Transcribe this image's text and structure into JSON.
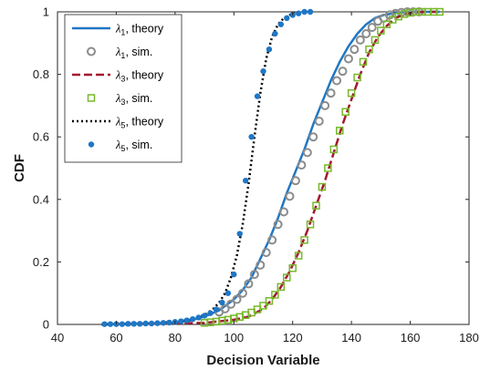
{
  "chart_data": {
    "type": "line",
    "title": "",
    "xlabel": "Decision Variable",
    "ylabel": "CDF",
    "xlim": [
      40,
      180
    ],
    "ylim": [
      0,
      1
    ],
    "xticks": [
      40,
      60,
      80,
      100,
      120,
      140,
      160,
      180
    ],
    "yticks": [
      0,
      0.2,
      0.4,
      0.6,
      0.8,
      1
    ],
    "xtick_labels": [
      "40",
      "60",
      "80",
      "100",
      "120",
      "140",
      "160",
      "180"
    ],
    "ytick_labels": [
      "0",
      "0.2",
      "0.4",
      "0.6",
      "0.8",
      "1"
    ],
    "grid": false,
    "legend_position": "top-left",
    "series": [
      {
        "name": "λ1, theory",
        "sym": "λ",
        "sub": "1",
        "suffix": ", theory",
        "style": "solid",
        "marker": "none",
        "color": "#1f77c4",
        "x": [
          55,
          80,
          85,
          90,
          95,
          100,
          103,
          106,
          109,
          112,
          115,
          118,
          121,
          124,
          127,
          130,
          133,
          136,
          139,
          142,
          145,
          148,
          151,
          154,
          157,
          160,
          170
        ],
        "y": [
          0.0,
          0.005,
          0.012,
          0.025,
          0.045,
          0.08,
          0.11,
          0.15,
          0.21,
          0.27,
          0.34,
          0.42,
          0.49,
          0.56,
          0.64,
          0.71,
          0.78,
          0.84,
          0.89,
          0.93,
          0.96,
          0.98,
          0.99,
          0.995,
          0.998,
          1.0,
          1.0
        ]
      },
      {
        "name": "λ1, sim.",
        "sym": "λ",
        "sub": "1",
        "suffix": ", sim.",
        "style": "none",
        "marker": "circle-open",
        "color": "#8c8c8c",
        "x": [
          95,
          97,
          99,
          101,
          103,
          105,
          107,
          109,
          111,
          113,
          115,
          117,
          119,
          121,
          123,
          125,
          127,
          129,
          131,
          133,
          135,
          137,
          139,
          141,
          143,
          145,
          147,
          149,
          151,
          153,
          155,
          157,
          159,
          161,
          163
        ],
        "y": [
          0.04,
          0.05,
          0.065,
          0.08,
          0.1,
          0.13,
          0.16,
          0.19,
          0.23,
          0.27,
          0.32,
          0.36,
          0.41,
          0.46,
          0.51,
          0.55,
          0.6,
          0.65,
          0.7,
          0.74,
          0.78,
          0.81,
          0.85,
          0.88,
          0.91,
          0.93,
          0.95,
          0.97,
          0.98,
          0.99,
          0.995,
          0.998,
          1.0,
          1.0,
          1.0
        ]
      },
      {
        "name": "λ3, theory",
        "sym": "λ",
        "sub": "3",
        "suffix": ", theory",
        "style": "dashed",
        "marker": "none",
        "color": "#a3192e",
        "x": [
          55,
          90,
          100,
          105,
          110,
          113,
          116,
          119,
          122,
          125,
          128,
          131,
          134,
          137,
          140,
          143,
          146,
          149,
          152,
          155,
          158,
          161,
          165,
          170
        ],
        "y": [
          0.0,
          0.005,
          0.015,
          0.025,
          0.05,
          0.08,
          0.12,
          0.17,
          0.23,
          0.3,
          0.38,
          0.46,
          0.55,
          0.64,
          0.72,
          0.8,
          0.87,
          0.92,
          0.955,
          0.98,
          0.992,
          0.998,
          1.0,
          1.0
        ]
      },
      {
        "name": "λ3, sim.",
        "sym": "λ",
        "sub": "3",
        "suffix": ", sim.",
        "style": "none",
        "marker": "square-open",
        "color": "#78b82a",
        "x": [
          90,
          92,
          94,
          96,
          98,
          100,
          102,
          104,
          106,
          108,
          110,
          112,
          114,
          116,
          118,
          120,
          122,
          124,
          126,
          128,
          130,
          132,
          134,
          136,
          138,
          140,
          142,
          144,
          146,
          148,
          150,
          152,
          154,
          156,
          158,
          160,
          162,
          164,
          166,
          168,
          170
        ],
        "y": [
          0.005,
          0.007,
          0.009,
          0.012,
          0.015,
          0.019,
          0.024,
          0.03,
          0.038,
          0.048,
          0.06,
          0.075,
          0.095,
          0.12,
          0.15,
          0.18,
          0.22,
          0.27,
          0.32,
          0.38,
          0.44,
          0.5,
          0.56,
          0.62,
          0.68,
          0.74,
          0.79,
          0.84,
          0.88,
          0.91,
          0.94,
          0.96,
          0.975,
          0.985,
          0.993,
          0.997,
          1.0,
          1.0,
          1.0,
          1.0,
          1.0
        ]
      },
      {
        "name": "λ5, theory",
        "sym": "λ",
        "sub": "5",
        "suffix": ", theory",
        "style": "dotted",
        "marker": "none",
        "color": "#000000",
        "x": [
          55,
          70,
          80,
          85,
          90,
          93,
          95,
          97,
          99,
          101,
          103,
          105,
          107,
          109,
          111,
          113,
          115,
          117,
          119,
          121,
          123,
          125
        ],
        "y": [
          0.0,
          0.002,
          0.008,
          0.015,
          0.03,
          0.05,
          0.07,
          0.1,
          0.15,
          0.22,
          0.32,
          0.45,
          0.6,
          0.74,
          0.85,
          0.92,
          0.96,
          0.98,
          0.99,
          0.997,
          0.999,
          1.0
        ]
      },
      {
        "name": "λ5, sim.",
        "sym": "λ",
        "sub": "5",
        "suffix": ", sim.",
        "style": "none",
        "marker": "circle-filled",
        "color": "#1f77c4",
        "x": [
          56,
          58,
          60,
          62,
          64,
          66,
          68,
          70,
          72,
          74,
          76,
          78,
          80,
          82,
          84,
          86,
          88,
          90,
          92,
          94,
          96,
          98,
          100,
          102,
          104,
          106,
          108,
          110,
          112,
          114,
          116,
          118,
          120,
          122,
          124,
          126
        ],
        "y": [
          0.001,
          0.001,
          0.001,
          0.001,
          0.002,
          0.002,
          0.002,
          0.003,
          0.003,
          0.004,
          0.005,
          0.006,
          0.008,
          0.01,
          0.013,
          0.017,
          0.022,
          0.028,
          0.036,
          0.048,
          0.07,
          0.1,
          0.16,
          0.29,
          0.46,
          0.6,
          0.73,
          0.81,
          0.88,
          0.93,
          0.96,
          0.98,
          0.99,
          0.995,
          1.0,
          1.0
        ]
      }
    ]
  }
}
